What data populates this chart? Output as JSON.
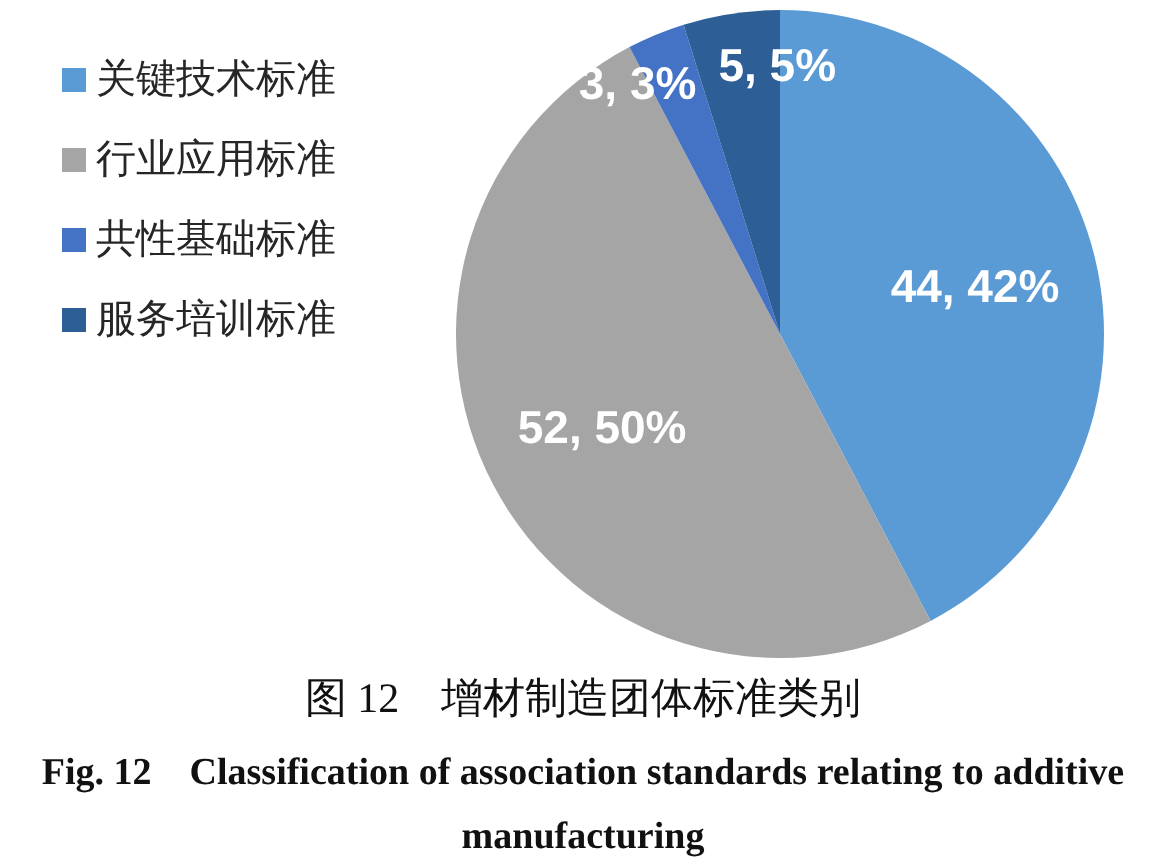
{
  "chart_data": {
    "type": "pie",
    "categories": [
      "关键技术标准",
      "行业应用标准",
      "共性基础标准",
      "服务培训标准"
    ],
    "values": [
      44,
      52,
      3,
      5
    ],
    "colors": [
      "#5b9bd5",
      "#a5a5a5",
      "#4472c4",
      "#2e5e96"
    ],
    "value_labels": [
      "44, 42%",
      "52, 50%",
      "3, 3%",
      "5, 5%"
    ],
    "legend": "top left",
    "annotations": [
      "图 12　增材制造团体标准类别",
      "Fig. 12　Classification of association standards relating to additive manufacturing"
    ]
  }
}
